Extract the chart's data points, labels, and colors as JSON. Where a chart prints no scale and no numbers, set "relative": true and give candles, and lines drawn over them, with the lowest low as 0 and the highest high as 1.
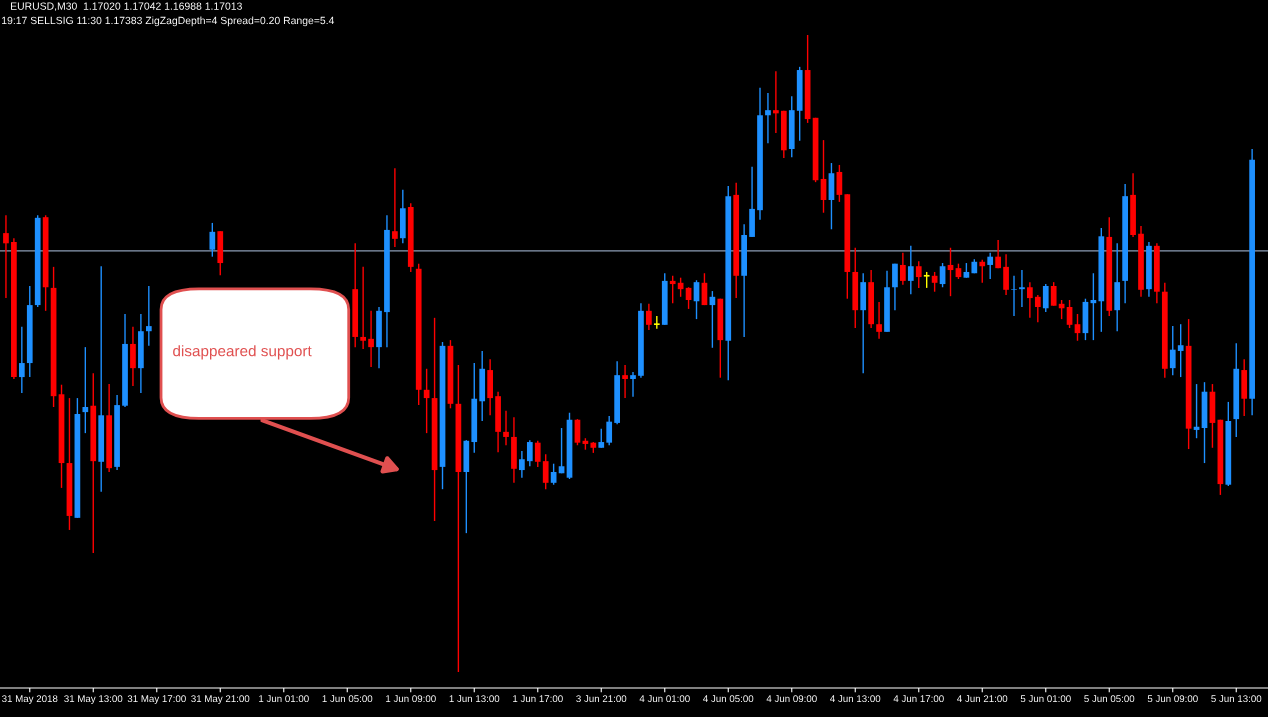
{
  "chart_data": {
    "type": "candlestick",
    "relative": true,
    "title": "EURUSD,M30  1.17020 1.17042 1.16988 1.17013",
    "subtitle": "19:17 SELLSIG 11:30 1.17383 ZigZagDepth=4 Spread=0.20 Range=5.4",
    "annotations": [
      "disappeared support"
    ],
    "tick_labels": "x",
    "ref_lines": [
      {
        "axis": "y",
        "value": 0.661,
        "color": "#8c9db5"
      }
    ],
    "categories": [
      null,
      null,
      null,
      "31 May 2018",
      null,
      null,
      null,
      null,
      null,
      null,
      null,
      "31 May 13:00",
      null,
      null,
      null,
      null,
      null,
      null,
      null,
      "31 May 17:00",
      null,
      null,
      null,
      null,
      null,
      null,
      null,
      "31 May 21:00",
      null,
      null,
      null,
      null,
      null,
      null,
      null,
      "1 Jun 01:00",
      null,
      null,
      null,
      null,
      null,
      null,
      null,
      "1 Jun 05:00",
      null,
      null,
      null,
      null,
      null,
      null,
      null,
      "1 Jun 09:00",
      null,
      null,
      null,
      null,
      null,
      null,
      null,
      "1 Jun 13:00",
      null,
      null,
      null,
      null,
      null,
      null,
      null,
      "1 Jun 17:00",
      null,
      null,
      null,
      null,
      null,
      null,
      null,
      "3 Jun 21:00",
      null,
      null,
      null,
      null,
      null,
      null,
      null,
      "4 Jun 01:00",
      null,
      null,
      null,
      null,
      null,
      null,
      null,
      "4 Jun 05:00",
      null,
      null,
      null,
      null,
      null,
      null,
      null,
      "4 Jun 09:00",
      null,
      null,
      null,
      null,
      null,
      null,
      null,
      "4 Jun 13:00",
      null,
      null,
      null,
      null,
      null,
      null,
      null,
      "4 Jun 17:00",
      null,
      null,
      null,
      null,
      null,
      null,
      null,
      "4 Jun 21:00",
      null,
      null,
      null,
      null,
      null,
      null,
      null,
      "5 Jun 01:00",
      null,
      null,
      null,
      null,
      null,
      null,
      null,
      "5 Jun 05:00",
      null,
      null,
      null,
      null,
      null,
      null,
      null,
      "5 Jun 09:00",
      null,
      null,
      null,
      null,
      null,
      null,
      null,
      "5 Jun 13:00",
      null,
      null
    ],
    "ohlc": [
      [
        0.689,
        0.717,
        0.587,
        0.673
      ],
      [
        0.675,
        0.681,
        0.46,
        0.463
      ],
      [
        0.463,
        0.542,
        0.438,
        0.485
      ],
      [
        0.485,
        0.606,
        0.463,
        0.576
      ],
      [
        0.576,
        0.717,
        0.573,
        0.713
      ],
      [
        0.714,
        0.717,
        0.567,
        0.604
      ],
      [
        0.603,
        0.636,
        0.416,
        0.433
      ],
      [
        0.436,
        0.451,
        0.289,
        0.328
      ],
      [
        0.328,
        0.43,
        0.223,
        0.245
      ],
      [
        0.242,
        0.43,
        0.242,
        0.405
      ],
      [
        0.408,
        0.51,
        0.375,
        0.416
      ],
      [
        0.418,
        0.469,
        0.187,
        0.331
      ],
      [
        0.33,
        0.637,
        0.283,
        0.403
      ],
      [
        0.403,
        0.452,
        0.314,
        0.32
      ],
      [
        0.322,
        0.435,
        0.317,
        0.419
      ],
      [
        0.418,
        0.562,
        0.416,
        0.515
      ],
      [
        0.515,
        0.542,
        0.449,
        0.477
      ],
      [
        0.477,
        0.562,
        0.438,
        0.535
      ],
      [
        0.535,
        0.606,
        0.512,
        0.543
      ],
      null,
      null,
      null,
      null,
      null,
      null,
      null,
      [
        0.663,
        0.705,
        0.652,
        0.691
      ],
      [
        0.692,
        0.692,
        0.623,
        0.642
      ],
      null,
      null,
      null,
      null,
      null,
      null,
      null,
      null,
      null,
      null,
      null,
      null,
      null,
      null,
      null,
      null,
      [
        0.601,
        0.673,
        0.51,
        0.526
      ],
      [
        0.526,
        0.636,
        0.507,
        0.52
      ],
      [
        0.523,
        0.567,
        0.479,
        0.51
      ],
      [
        0.51,
        0.573,
        0.477,
        0.567
      ],
      [
        0.565,
        0.717,
        0.51,
        0.694
      ],
      [
        0.692,
        0.791,
        0.667,
        0.68
      ],
      [
        0.681,
        0.757,
        0.673,
        0.728
      ],
      [
        0.73,
        0.736,
        0.628,
        0.636
      ],
      [
        0.633,
        0.641,
        0.419,
        0.443
      ],
      [
        0.443,
        0.476,
        0.375,
        0.43
      ],
      [
        0.43,
        0.556,
        0.237,
        0.317
      ],
      [
        0.322,
        0.518,
        0.287,
        0.512
      ],
      [
        0.512,
        0.521,
        0.414,
        0.421
      ],
      [
        0.421,
        0.482,
        0,
        0.314
      ],
      [
        0.314,
        0.364,
        0.218,
        0.363
      ],
      [
        0.361,
        0.485,
        0.344,
        0.429
      ],
      [
        0.425,
        0.504,
        0.394,
        0.476
      ],
      [
        0.474,
        0.491,
        0.403,
        0.43
      ],
      [
        0.433,
        0.44,
        0.345,
        0.377
      ],
      [
        0.377,
        0.41,
        0.356,
        0.369
      ],
      [
        0.369,
        0.4,
        0.297,
        0.319
      ],
      [
        0.317,
        0.347,
        0.305,
        0.334
      ],
      [
        0.331,
        0.364,
        0.323,
        0.361
      ],
      [
        0.36,
        0.363,
        0.322,
        0.33
      ],
      [
        0.331,
        0.342,
        0.287,
        0.297
      ],
      [
        0.297,
        0.327,
        0.294,
        0.314
      ],
      [
        0.312,
        0.383,
        0.312,
        0.323
      ],
      [
        0.305,
        0.407,
        0.303,
        0.396
      ],
      [
        0.396,
        0.397,
        0.356,
        0.36
      ],
      [
        0.363,
        0.367,
        0.349,
        0.358
      ],
      [
        0.36,
        0.361,
        0.344,
        0.352
      ],
      [
        0.352,
        0.382,
        0.352,
        0.361
      ],
      [
        0.36,
        0.402,
        0.356,
        0.393
      ],
      [
        0.391,
        0.488,
        0.389,
        0.466
      ],
      [
        0.466,
        0.482,
        0.43,
        0.46
      ],
      [
        0.46,
        0.471,
        0.432,
        0.466
      ],
      [
        0.465,
        0.579,
        0.462,
        0.567
      ],
      [
        0.567,
        0.578,
        0.537,
        0.545
      ],
      [
        0.546,
        0.559,
        0.539,
        0.546
      ],
      [
        0.545,
        0.626,
        0.545,
        0.614
      ],
      [
        0.614,
        0.622,
        0.579,
        0.609
      ],
      [
        0.611,
        0.619,
        0.589,
        0.601
      ],
      [
        0.603,
        0.604,
        0.57,
        0.584
      ],
      [
        0.582,
        0.615,
        0.554,
        0.612
      ],
      [
        0.611,
        0.626,
        0.576,
        0.576
      ],
      [
        0.576,
        0.598,
        0.509,
        0.589
      ],
      [
        0.586,
        0.586,
        0.462,
        0.521
      ],
      [
        0.52,
        0.763,
        0.458,
        0.747
      ],
      [
        0.749,
        0.768,
        0.587,
        0.622
      ],
      [
        0.622,
        0.703,
        0.526,
        0.686
      ],
      [
        0.683,
        0.793,
        0.683,
        0.727
      ],
      [
        0.725,
        0.917,
        0.71,
        0.874
      ],
      [
        0.874,
        0.909,
        0.83,
        0.882
      ],
      [
        0.882,
        0.943,
        0.846,
        0.877
      ],
      [
        0.881,
        0.881,
        0.807,
        0.819
      ],
      [
        0.821,
        0.904,
        0.808,
        0.882
      ],
      [
        0.881,
        0.95,
        0.834,
        0.945
      ],
      [
        0.945,
        1,
        0.862,
        0.868
      ],
      [
        0.87,
        0.87,
        0.769,
        0.772
      ],
      [
        0.774,
        0.835,
        0.721,
        0.741
      ],
      [
        0.741,
        0.799,
        0.695,
        0.783
      ],
      [
        0.785,
        0.796,
        0.738,
        0.749
      ],
      [
        0.75,
        0.75,
        0.586,
        0.628
      ],
      [
        0.628,
        0.666,
        0.54,
        0.568
      ],
      [
        0.568,
        0.626,
        0.469,
        0.612
      ],
      [
        0.612,
        0.631,
        0.54,
        0.546
      ],
      [
        0.546,
        0.581,
        0.523,
        0.534
      ],
      [
        0.534,
        0.63,
        0.534,
        0.604
      ],
      [
        0.604,
        0.641,
        0.568,
        0.641
      ],
      [
        0.639,
        0.658,
        0.608,
        0.614
      ],
      [
        0.614,
        0.669,
        0.593,
        0.637
      ],
      [
        0.637,
        0.645,
        0.603,
        0.62
      ],
      [
        0.622,
        0.628,
        0.603,
        0.622
      ],
      [
        0.622,
        0.628,
        0.597,
        0.611
      ],
      [
        0.609,
        0.642,
        0.604,
        0.637
      ],
      [
        0.639,
        0.666,
        0.59,
        0.631
      ],
      [
        0.634,
        0.641,
        0.617,
        0.62
      ],
      [
        0.619,
        0.642,
        0.619,
        0.628
      ],
      [
        0.626,
        0.648,
        0.626,
        0.644
      ],
      [
        0.644,
        0.647,
        0.611,
        0.637
      ],
      [
        0.639,
        0.658,
        0.617,
        0.652
      ],
      [
        0.652,
        0.678,
        0.634,
        0.634
      ],
      [
        0.636,
        0.656,
        0.592,
        0.6
      ],
      [
        0.6,
        0.622,
        0.559,
        0.601
      ],
      [
        0.601,
        0.631,
        0.573,
        0.604
      ],
      [
        0.604,
        0.612,
        0.556,
        0.587
      ],
      [
        0.589,
        0.592,
        0.549,
        0.573
      ],
      [
        0.571,
        0.609,
        0.565,
        0.606
      ],
      [
        0.606,
        0.612,
        0.575,
        0.575
      ],
      [
        0.578,
        0.584,
        0.554,
        0.571
      ],
      [
        0.573,
        0.584,
        0.54,
        0.545
      ],
      [
        0.546,
        0.562,
        0.52,
        0.532
      ],
      [
        0.532,
        0.586,
        0.521,
        0.581
      ],
      [
        0.579,
        0.626,
        0.521,
        0.584
      ],
      [
        0.582,
        0.697,
        0.534,
        0.684
      ],
      [
        0.683,
        0.714,
        0.559,
        0.567
      ],
      [
        0.568,
        0.673,
        0.535,
        0.612
      ],
      [
        0.614,
        0.766,
        0.579,
        0.747
      ],
      [
        0.749,
        0.783,
        0.683,
        0.686
      ],
      [
        0.688,
        0.7,
        0.589,
        0.6
      ],
      [
        0.601,
        0.675,
        0.589,
        0.669
      ],
      [
        0.669,
        0.673,
        0.579,
        0.597
      ],
      [
        0.597,
        0.611,
        0.462,
        0.476
      ],
      [
        0.477,
        0.543,
        0.466,
        0.506
      ],
      [
        0.504,
        0.546,
        0.463,
        0.513
      ],
      [
        0.512,
        0.554,
        0.35,
        0.382
      ],
      [
        0.38,
        0.452,
        0.367,
        0.385
      ],
      [
        0.383,
        0.455,
        0.328,
        0.44
      ],
      [
        0.44,
        0.452,
        0.352,
        0.391
      ],
      [
        0.396,
        0.396,
        0.278,
        0.295
      ],
      [
        0.294,
        0.424,
        0.292,
        0.394
      ],
      [
        0.397,
        0.516,
        0.369,
        0.476
      ],
      [
        0.474,
        0.491,
        0.402,
        0.429
      ],
      [
        0.429,
        0.821,
        0.403,
        0.804
      ]
    ],
    "colors": [
      "#ff0000",
      "#ff0000",
      "#1e90ff",
      "#1e90ff",
      "#1e90ff",
      "#ff0000",
      "#ff0000",
      "#ff0000",
      "#ff0000",
      "#1e90ff",
      "#1e90ff",
      "#ff0000",
      "#1e90ff",
      "#ff0000",
      "#1e90ff",
      "#1e90ff",
      "#ff0000",
      "#1e90ff",
      "#1e90ff",
      null,
      null,
      null,
      null,
      null,
      null,
      null,
      "#1e90ff",
      "#ff0000",
      null,
      null,
      null,
      null,
      null,
      null,
      null,
      null,
      null,
      null,
      null,
      null,
      null,
      null,
      null,
      null,
      "#ff0000",
      "#ff0000",
      "#ff0000",
      "#1e90ff",
      "#1e90ff",
      "#ff0000",
      "#1e90ff",
      "#ff0000",
      "#ff0000",
      "#ff0000",
      "#ff0000",
      "#1e90ff",
      "#ff0000",
      "#ff0000",
      "#1e90ff",
      "#1e90ff",
      "#1e90ff",
      "#ff0000",
      "#ff0000",
      "#ff0000",
      "#ff0000",
      "#1e90ff",
      "#1e90ff",
      "#ff0000",
      "#ff0000",
      "#1e90ff",
      "#1e90ff",
      "#1e90ff",
      "#ff0000",
      "#ff0000",
      "#ff0000",
      "#1e90ff",
      "#1e90ff",
      "#1e90ff",
      "#ff0000",
      "#1e90ff",
      "#1e90ff",
      "#ff0000",
      "#ffff00",
      "#1e90ff",
      "#ff0000",
      "#ff0000",
      "#ff0000",
      "#1e90ff",
      "#ff0000",
      "#1e90ff",
      "#ff0000",
      "#1e90ff",
      "#ff0000",
      "#1e90ff",
      "#1e90ff",
      "#1e90ff",
      "#1e90ff",
      "#ff0000",
      "#ff0000",
      "#1e90ff",
      "#1e90ff",
      "#ff0000",
      "#ff0000",
      "#ff0000",
      "#1e90ff",
      "#ff0000",
      "#ff0000",
      "#ff0000",
      "#1e90ff",
      "#ff0000",
      "#ff0000",
      "#1e90ff",
      "#1e90ff",
      "#ff0000",
      "#1e90ff",
      "#ff0000",
      "#ffff00",
      "#ff0000",
      "#1e90ff",
      "#ff0000",
      "#ff0000",
      "#1e90ff",
      "#1e90ff",
      "#ff0000",
      "#1e90ff",
      "#ff0000",
      "#ff0000",
      "#1e90ff",
      "#1e90ff",
      "#ff0000",
      "#ff0000",
      "#1e90ff",
      "#ff0000",
      "#ff0000",
      "#ff0000",
      "#ff0000",
      "#1e90ff",
      "#1e90ff",
      "#1e90ff",
      "#ff0000",
      "#1e90ff",
      "#1e90ff",
      "#ff0000",
      "#ff0000",
      "#1e90ff",
      "#ff0000",
      "#ff0000",
      "#1e90ff",
      "#1e90ff",
      "#ff0000",
      "#1e90ff",
      "#1e90ff",
      "#ff0000",
      "#ff0000",
      "#1e90ff",
      "#1e90ff",
      "#ff0000",
      "#1e90ff"
    ]
  }
}
